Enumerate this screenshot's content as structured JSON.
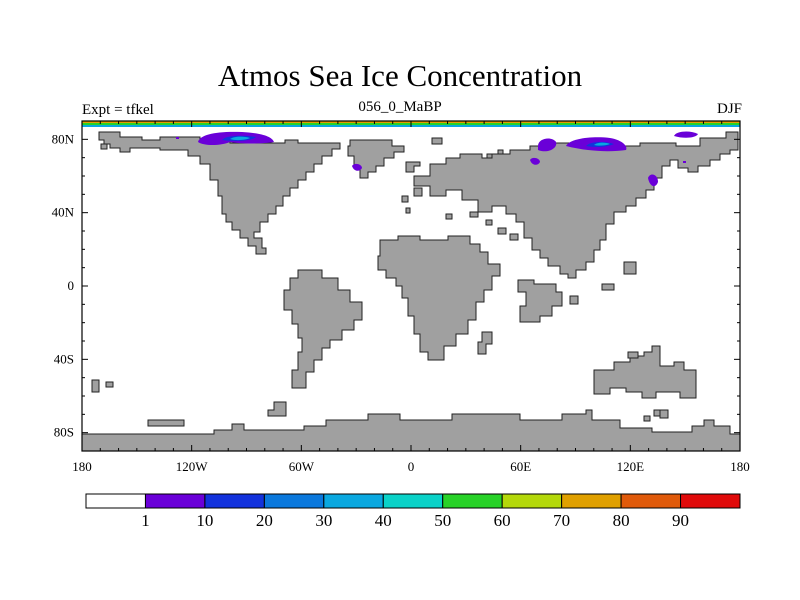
{
  "title": "Atmos Sea Ice Concentration",
  "subtitle": {
    "left": "Expt = tfkel",
    "center": "056_0_MaBP",
    "right": "DJF"
  },
  "axes": {
    "lon_ticks": [
      {
        "value": -180,
        "label": "180"
      },
      {
        "value": -120,
        "label": "120W"
      },
      {
        "value": -60,
        "label": "60W"
      },
      {
        "value": 0,
        "label": "0"
      },
      {
        "value": 60,
        "label": "60E"
      },
      {
        "value": 120,
        "label": "120E"
      },
      {
        "value": 180,
        "label": "180"
      }
    ],
    "lat_ticks": [
      {
        "value": 80,
        "label": "80N"
      },
      {
        "value": 40,
        "label": "40N"
      },
      {
        "value": 0,
        "label": "0"
      },
      {
        "value": -40,
        "label": "40S"
      },
      {
        "value": -80,
        "label": "80S"
      }
    ],
    "lon_range": [
      -180,
      180
    ],
    "lat_range": [
      -90,
      90
    ]
  },
  "colors": {
    "land": "#a0a0a0",
    "coast": "#222222",
    "ocean": "#ffffff"
  },
  "colorbar": {
    "boxes": [
      "#ffffff",
      "#6a00d8",
      "#1232dc",
      "#0a78dc",
      "#0aa8e0",
      "#0ad2c8",
      "#28d228",
      "#b4d80a",
      "#e0a000",
      "#e05a0a",
      "#e00a0a"
    ],
    "labels": [
      "1",
      "10",
      "20",
      "30",
      "40",
      "50",
      "60",
      "70",
      "80",
      "90"
    ]
  }
}
